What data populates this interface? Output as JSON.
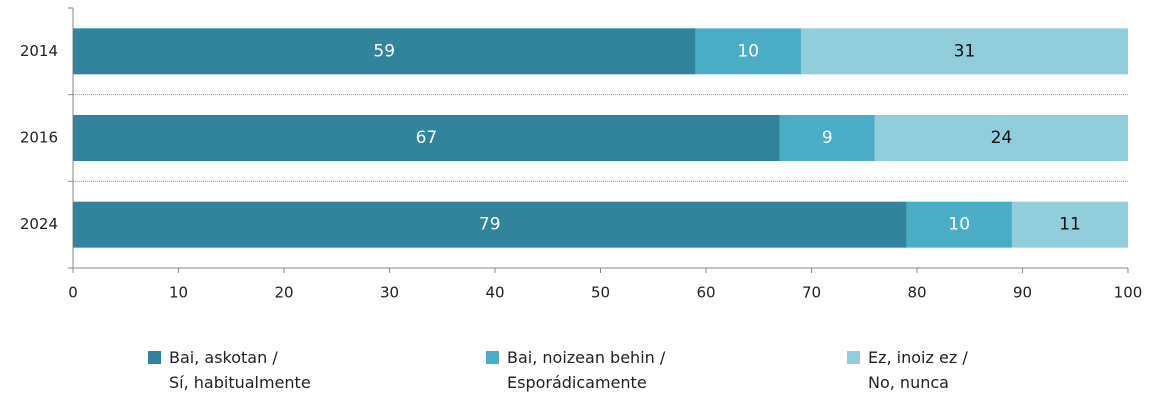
{
  "chart_data": {
    "type": "stacked-barh",
    "categories": [
      "2014",
      "2016",
      "2024"
    ],
    "series": [
      {
        "name": "Bai, askotan /\nSí, habitualmente",
        "color": "#31849b",
        "label_color": "#ffffff",
        "values": [
          59,
          67,
          79
        ]
      },
      {
        "name": "Bai, noizean behin /\nEsporádicamente",
        "color": "#4bacc6",
        "label_color": "#ffffff",
        "values": [
          10,
          9,
          10
        ]
      },
      {
        "name": "Ez, inoiz ez /\nNo, nunca",
        "color": "#92cddc",
        "label_color": "#111111",
        "values": [
          31,
          24,
          11
        ]
      }
    ],
    "xlim": [
      0,
      100
    ],
    "xticks": [
      0,
      10,
      20,
      30,
      40,
      50,
      60,
      70,
      80,
      90,
      100
    ],
    "legend": "bottom"
  }
}
